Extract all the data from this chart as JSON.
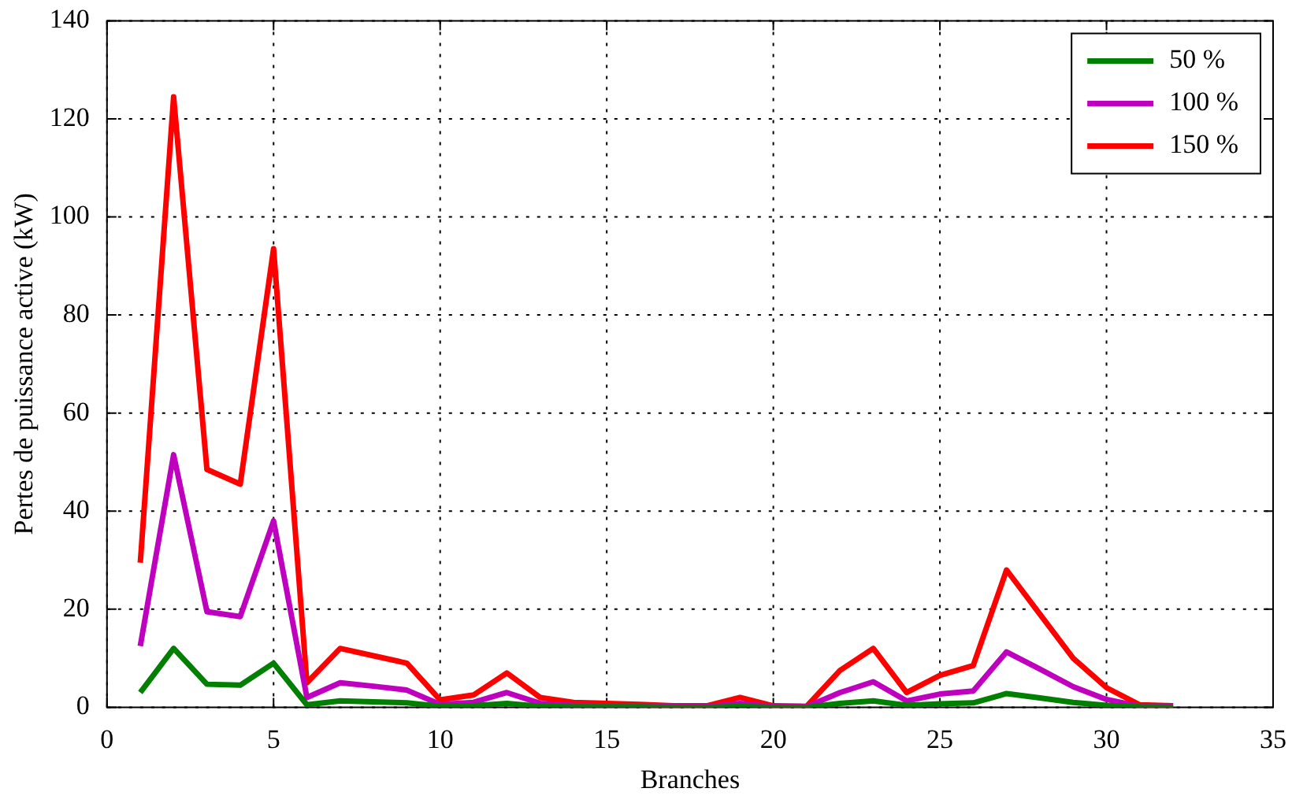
{
  "chart_data": {
    "type": "line",
    "xlabel": "Branches",
    "ylabel": "Pertes de puissance active (kW)",
    "x": [
      1,
      2,
      3,
      4,
      5,
      6,
      7,
      8,
      9,
      10,
      11,
      12,
      13,
      14,
      15,
      16,
      17,
      18,
      19,
      20,
      21,
      22,
      23,
      24,
      25,
      26,
      27,
      28,
      29,
      30,
      31,
      32
    ],
    "series": [
      {
        "name": "50 %",
        "color": "#007f00",
        "values": [
          3,
          12,
          4.7,
          4.5,
          9,
          0.5,
          1.3,
          1.1,
          0.9,
          0.2,
          0.3,
          0.8,
          0.2,
          0.1,
          0.1,
          0.1,
          0,
          0,
          0.2,
          0,
          0,
          0.8,
          1.3,
          0.4,
          0.7,
          0.9,
          2.8,
          1.9,
          1,
          0.4,
          0.1,
          0
        ]
      },
      {
        "name": "100 %",
        "color": "#bf00bf",
        "values": [
          12.5,
          51.5,
          19.5,
          18.5,
          38,
          2,
          5,
          4.3,
          3.5,
          0.6,
          1,
          3,
          0.8,
          0.4,
          0.3,
          0.3,
          0.1,
          0.1,
          0.8,
          0.1,
          0.1,
          3,
          5.2,
          1.3,
          2.7,
          3.3,
          11.3,
          7.8,
          4.2,
          1.6,
          0.2,
          0.1
        ]
      },
      {
        "name": "150 %",
        "color": "#ff0000",
        "values": [
          29.5,
          124.5,
          48.5,
          45.5,
          93.5,
          5,
          12,
          10.5,
          9,
          1.5,
          2.5,
          7,
          2,
          1,
          0.8,
          0.6,
          0.3,
          0.3,
          2,
          0.3,
          0.2,
          7.5,
          12,
          3,
          6.5,
          8.5,
          28,
          19,
          10,
          4,
          0.5,
          0.3
        ]
      }
    ],
    "xlim": [
      0,
      35
    ],
    "xticks": [
      0,
      5,
      10,
      15,
      20,
      25,
      30,
      35
    ],
    "ylim": [
      0,
      140
    ],
    "yticks": [
      0,
      20,
      40,
      60,
      80,
      100,
      120,
      140
    ],
    "grid": true,
    "legend": "top right",
    "marker": "none",
    "line_style": "solid"
  }
}
